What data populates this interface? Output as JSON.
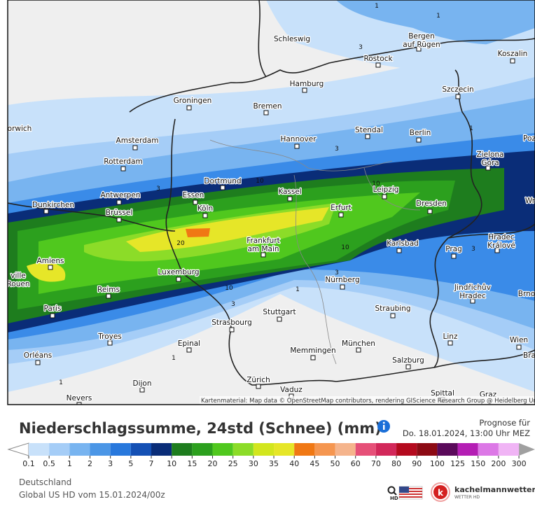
{
  "map": {
    "cities": [
      {
        "name": [
          "Schleswig"
        ]
      },
      {
        "name": [
          "Bergen",
          "auf Rügen"
        ]
      },
      {
        "name": [
          "Rostock"
        ]
      },
      {
        "name": [
          "Koszalin"
        ]
      },
      {
        "name": [
          "Hamburg"
        ]
      },
      {
        "name": [
          "Szczecin"
        ]
      },
      {
        "name": [
          "Groningen"
        ]
      },
      {
        "name": [
          "Bremen"
        ]
      },
      {
        "name": [
          "Amsterdam"
        ]
      },
      {
        "name": [
          "Stendal"
        ]
      },
      {
        "name": [
          "Berlin"
        ]
      },
      {
        "name": [
          "Hannover"
        ]
      },
      {
        "name": [
          "Zielona",
          "Góra"
        ]
      },
      {
        "name": [
          "Rotterdam"
        ]
      },
      {
        "name": [
          "Dortmund"
        ]
      },
      {
        "name": [
          "Essen"
        ]
      },
      {
        "name": [
          "Kassel"
        ]
      },
      {
        "name": [
          "Leipzig"
        ]
      },
      {
        "name": [
          "Antwerpen"
        ]
      },
      {
        "name": [
          "Dunkirchen"
        ]
      },
      {
        "name": [
          "Brüssel"
        ]
      },
      {
        "name": [
          "Köln"
        ]
      },
      {
        "name": [
          "Erfurt"
        ]
      },
      {
        "name": [
          "Dresden"
        ]
      },
      {
        "name": [
          "Hradec",
          "Králové"
        ]
      },
      {
        "name": [
          "Frankfurt",
          "am Main"
        ]
      },
      {
        "name": [
          "Karlsbad"
        ]
      },
      {
        "name": [
          "Prag"
        ]
      },
      {
        "name": [
          "Amiens"
        ]
      },
      {
        "name": [
          "Luxemburg"
        ]
      },
      {
        "name": [
          "Nürnberg"
        ]
      },
      {
        "name": [
          "Reims"
        ]
      },
      {
        "name": [
          "Jindřichův",
          "Hradec"
        ]
      },
      {
        "name": [
          "Paris"
        ]
      },
      {
        "name": [
          "Stuttgart"
        ]
      },
      {
        "name": [
          "Straubing"
        ]
      },
      {
        "name": [
          "Troyes"
        ]
      },
      {
        "name": [
          "Strasbourg"
        ]
      },
      {
        "name": [
          "Epinal"
        ]
      },
      {
        "name": [
          "Linz"
        ]
      },
      {
        "name": [
          "München"
        ]
      },
      {
        "name": [
          "Wien"
        ]
      },
      {
        "name": [
          "Memmingen"
        ]
      },
      {
        "name": [
          "Orléans"
        ]
      },
      {
        "name": [
          "Salzburg"
        ]
      },
      {
        "name": [
          "Dijon"
        ]
      },
      {
        "name": [
          "Zürich"
        ]
      },
      {
        "name": [
          "Vaduz"
        ]
      },
      {
        "name": [
          "Nevers"
        ]
      },
      {
        "name": [
          "Spittal"
        ]
      },
      {
        "name": [
          "orwich"
        ]
      },
      {
        "name": [
          "Poz"
        ]
      },
      {
        "name": [
          "Wr"
        ]
      },
      {
        "name": [
          "ville",
          "Rouen"
        ]
      },
      {
        "name": [
          "Brno"
        ]
      },
      {
        "name": [
          "Bra"
        ]
      },
      {
        "name": [
          "Graz"
        ]
      }
    ],
    "contour_labels": [
      "1",
      "1",
      "1",
      "1",
      "1",
      "1",
      "3",
      "3",
      "3",
      "3",
      "3",
      "3",
      "10",
      "10",
      "10",
      "10",
      "20"
    ],
    "attribution": "Kartenmaterial: Map data © OpenStreetMap contributors, rendering GIScience Research Group @ Heidelberg University"
  },
  "header": {
    "title": "Niederschlagssumme, 24std (Schnee) (mm)",
    "forecast_label": "Prognose für",
    "forecast_time": "Do. 18.01.2024, 13:00 Uhr MEZ"
  },
  "legend": {
    "values": [
      0.1,
      0.5,
      1,
      2,
      3,
      5,
      7,
      10,
      15,
      20,
      25,
      30,
      35,
      40,
      45,
      50,
      60,
      70,
      80,
      90,
      100,
      125,
      150,
      200,
      300
    ],
    "colors": [
      "#c8e1fa",
      "#a5cdf7",
      "#78b4f0",
      "#4b96e6",
      "#2878dc",
      "#1450b4",
      "#0a2d78",
      "#1e7d1e",
      "#2ca01e",
      "#50c81e",
      "#8cdc28",
      "#d2e61e",
      "#e6e628",
      "#f07814",
      "#f59650",
      "#f5b48c",
      "#e65078",
      "#d2285a",
      "#b40a1e",
      "#8c0a14",
      "#5a0a5a",
      "#b41eb4",
      "#dc78e6",
      "#f0b4f5"
    ],
    "low_color": "#ffffff",
    "high_color": "#a0a0a0"
  },
  "footer": {
    "region": "Deutschland",
    "model": "Global US HD vom 15.01.2024/00z",
    "hd": "HD",
    "brand": "kachelmannwetter.com",
    "brand_sub": "WETTER HD"
  }
}
